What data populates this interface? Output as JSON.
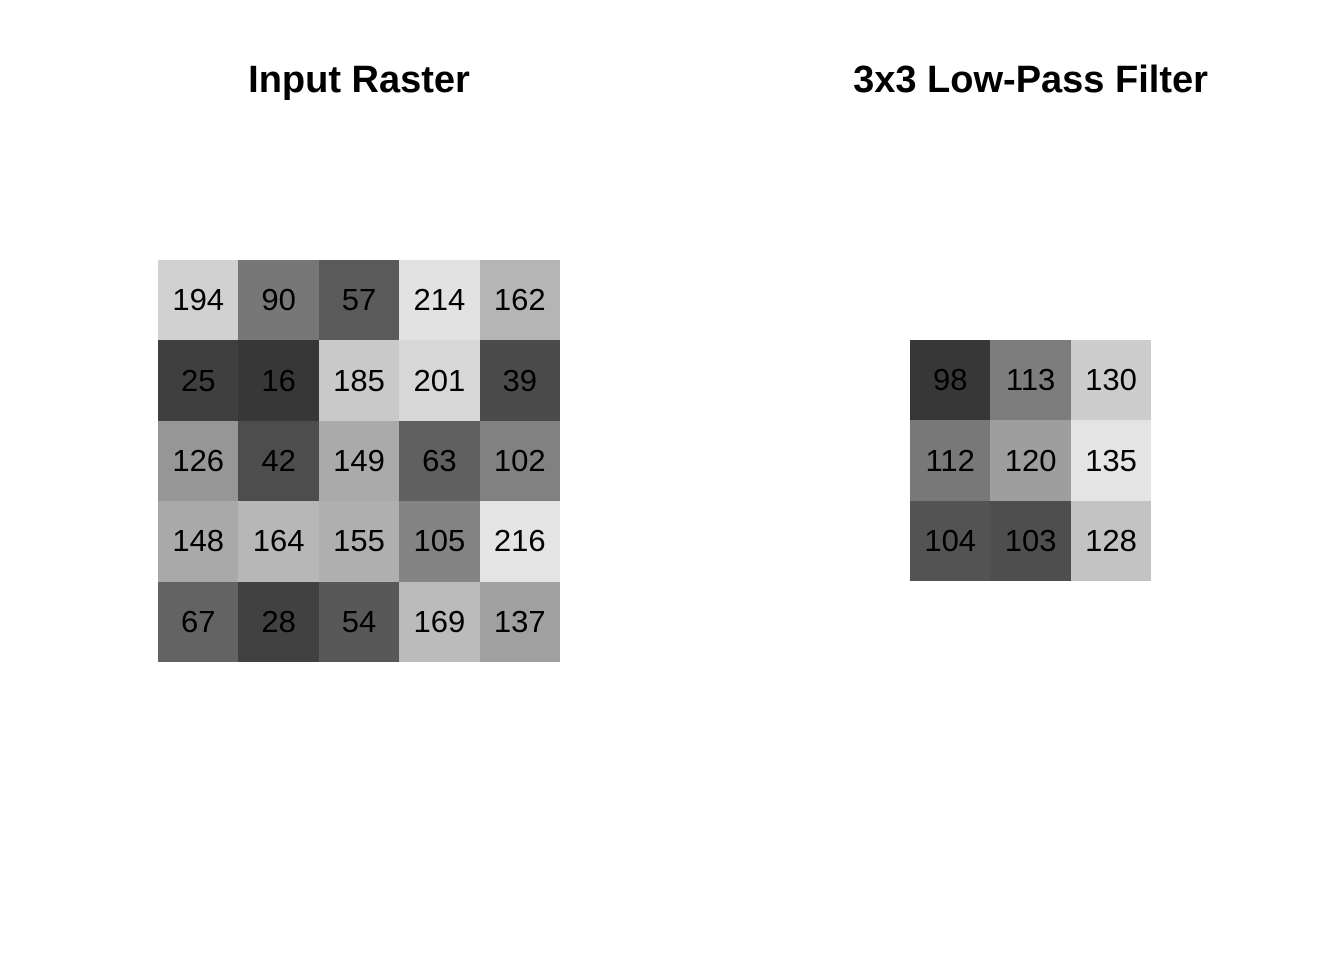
{
  "chart_data": [
    {
      "type": "heatmap",
      "title": "Input Raster",
      "colormap": "gray",
      "rows": [
        [
          194,
          90,
          57,
          214,
          162
        ],
        [
          25,
          16,
          185,
          201,
          39
        ],
        [
          126,
          42,
          149,
          63,
          102
        ],
        [
          148,
          164,
          155,
          105,
          216
        ],
        [
          67,
          28,
          54,
          169,
          137
        ]
      ],
      "axes": "off"
    },
    {
      "type": "heatmap",
      "title": "3x3 Low-Pass Filter",
      "colormap": "gray",
      "rows": [
        [
          98,
          113,
          130
        ],
        [
          112,
          120,
          135
        ],
        [
          104,
          103,
          128
        ]
      ],
      "axes": "off"
    }
  ]
}
